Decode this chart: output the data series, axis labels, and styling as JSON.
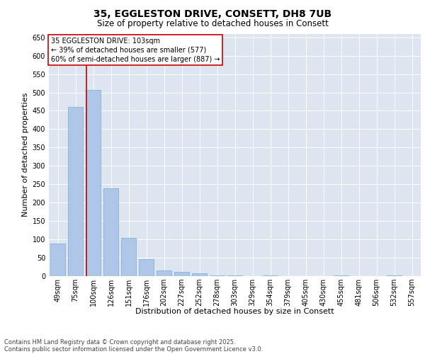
{
  "title": "35, EGGLESTON DRIVE, CONSETT, DH8 7UB",
  "subtitle": "Size of property relative to detached houses in Consett",
  "xlabel": "Distribution of detached houses by size in Consett",
  "ylabel": "Number of detached properties",
  "categories": [
    "49sqm",
    "75sqm",
    "100sqm",
    "126sqm",
    "151sqm",
    "176sqm",
    "202sqm",
    "227sqm",
    "252sqm",
    "278sqm",
    "303sqm",
    "329sqm",
    "354sqm",
    "379sqm",
    "405sqm",
    "430sqm",
    "455sqm",
    "481sqm",
    "506sqm",
    "532sqm",
    "557sqm"
  ],
  "values": [
    88,
    460,
    507,
    238,
    104,
    47,
    15,
    12,
    8,
    2,
    1,
    0,
    1,
    0,
    0,
    0,
    1,
    0,
    0,
    1,
    0
  ],
  "bar_color": "#aec6e8",
  "bar_edge_color": "#7aaacf",
  "vline_color": "#cc0000",
  "vline_pos": 1.62,
  "ylim": [
    0,
    660
  ],
  "yticks": [
    0,
    50,
    100,
    150,
    200,
    250,
    300,
    350,
    400,
    450,
    500,
    550,
    600,
    650
  ],
  "annotation_title": "35 EGGLESTON DRIVE: 103sqm",
  "annotation_line1": "← 39% of detached houses are smaller (577)",
  "annotation_line2": "60% of semi-detached houses are larger (887) →",
  "annotation_box_facecolor": "#ffffff",
  "annotation_box_edgecolor": "#cc0000",
  "footer_line1": "Contains HM Land Registry data © Crown copyright and database right 2025.",
  "footer_line2": "Contains public sector information licensed under the Open Government Licence v3.0.",
  "plot_bg_color": "#dde5f0",
  "fig_bg_color": "#ffffff",
  "title_fontsize": 10,
  "subtitle_fontsize": 8.5,
  "ylabel_fontsize": 8,
  "xlabel_fontsize": 8,
  "tick_fontsize": 7,
  "annotation_fontsize": 7,
  "footer_fontsize": 6
}
